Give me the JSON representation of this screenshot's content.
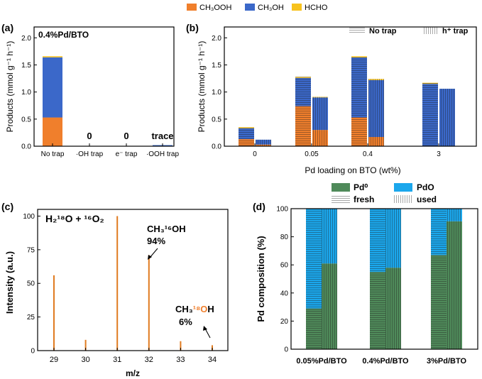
{
  "top_legend": [
    {
      "label": "CH₃OOH",
      "color": "#f07f2c"
    },
    {
      "label": "CH₃OH",
      "color": "#3b68c9"
    },
    {
      "label": "HCHO",
      "color": "#f7c21d"
    }
  ],
  "colors": {
    "ch3ooh": "#f07f2c",
    "ch3oh": "#3b68c9",
    "hcho": "#f7c21d",
    "spec": "#e07b20",
    "pd0": "#4f8a5a",
    "pdo": "#1ba7ec",
    "accent": "#f07f2c"
  },
  "chart_data": [
    {
      "panel": "(a)",
      "type": "bar",
      "subtitle": "0.4%Pd/BTO",
      "ylabel": "Products (mmol g⁻¹ h⁻¹)",
      "ylim": [
        0,
        2.0
      ],
      "yticks": [
        "0.0",
        "0.5",
        "1.0",
        "1.5",
        "2.0"
      ],
      "categories": [
        "No trap",
        "·OH trap",
        "e⁻ trap",
        "·OOH trap"
      ],
      "series": [
        {
          "name": "CH₃OOH",
          "values": [
            0.53,
            0,
            0,
            0
          ]
        },
        {
          "name": "CH₃OH",
          "values": [
            1.11,
            0,
            0,
            0.02
          ]
        },
        {
          "name": "HCHO",
          "values": [
            0.02,
            0,
            0,
            0
          ]
        }
      ],
      "annotations": [
        "0",
        "0",
        "trace"
      ]
    },
    {
      "panel": "(b)",
      "type": "bar",
      "xlabel": "Pd loading on BTO (wt%)",
      "ylabel": "Products (mmol g⁻¹ h⁻¹)",
      "ylim": [
        0,
        2.0
      ],
      "yticks": [
        "0.0",
        "0.5",
        "1.0",
        "1.5",
        "2.0"
      ],
      "categories": [
        "0",
        "0.05",
        "0.4",
        "3"
      ],
      "legend": [
        "No trap",
        "h⁺ trap"
      ],
      "series": [
        {
          "name": "CH₃OOH",
          "values": [
            0.13,
            0.74,
            0.53,
            0.0
          ],
          "h_trap": [
            0.03,
            0.3,
            0.17,
            0.0
          ]
        },
        {
          "name": "CH₃OH",
          "values": [
            0.2,
            0.52,
            1.11,
            1.15
          ],
          "h_trap": [
            0.09,
            0.6,
            1.05,
            1.06
          ]
        },
        {
          "name": "HCHO",
          "values": [
            0.02,
            0.02,
            0.02,
            0.02
          ],
          "h_trap": [
            0.0,
            0.01,
            0.02,
            0.0
          ]
        }
      ]
    },
    {
      "panel": "(c)",
      "type": "bar",
      "title": "H₂¹⁸O + ¹⁶O₂",
      "xlabel": "m/z",
      "ylabel": "Intensity (a.u.)",
      "ylim": [
        0,
        105
      ],
      "x": [
        29,
        30,
        31,
        32,
        33,
        34
      ],
      "values": [
        56,
        8,
        100,
        71,
        7,
        4
      ],
      "yticks": [
        "0",
        "25",
        "50",
        "75",
        "100"
      ],
      "annotations": [
        {
          "pre": "CH₃",
          "mid": "¹⁶",
          "post": "OH",
          "pct": "94%"
        },
        {
          "pre": "CH₃",
          "mid": "¹⁸O",
          "post": "H",
          "pct": "6%"
        }
      ]
    },
    {
      "panel": "(d)",
      "type": "bar",
      "ylabel": "Pd composition (%)",
      "ylim": [
        0,
        100
      ],
      "yticks": [
        "0",
        "20",
        "40",
        "60",
        "80",
        "100"
      ],
      "categories": [
        "0.05%Pd/BTO",
        "0.4%Pd/BTO",
        "3%Pd/BTO"
      ],
      "legend": [
        "Pd⁰",
        "PdO",
        "fresh",
        "used"
      ],
      "series": [
        {
          "name": "Pd⁰",
          "fresh": [
            29,
            55,
            67
          ],
          "used": [
            61,
            58,
            91
          ]
        },
        {
          "name": "PdO",
          "fresh": [
            71,
            45,
            33
          ],
          "used": [
            39,
            42,
            9
          ]
        }
      ]
    }
  ]
}
